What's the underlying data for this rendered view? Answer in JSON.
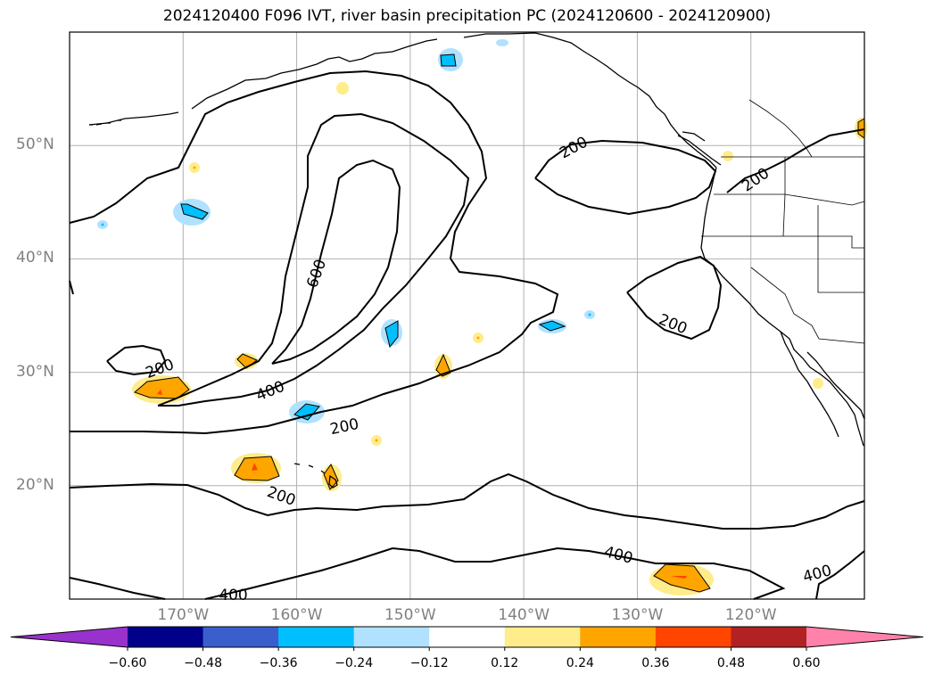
{
  "title": "2024120400 F096 IVT, river basin precipitation PC (2024120600 - 2024120900)",
  "map": {
    "projection": "plate-carree",
    "lon_range": [
      -180,
      -110
    ],
    "lat_range": [
      10,
      60
    ],
    "gridlines": true,
    "lat_labels": [
      {
        "value": 50,
        "text": "50°N"
      },
      {
        "value": 40,
        "text": "40°N"
      },
      {
        "value": 30,
        "text": "30°N"
      },
      {
        "value": 20,
        "text": "20°N"
      }
    ],
    "lon_labels": [
      {
        "value": -170,
        "text": "170°W"
      },
      {
        "value": -160,
        "text": "160°W"
      },
      {
        "value": -150,
        "text": "150°W"
      },
      {
        "value": -140,
        "text": "140°W"
      },
      {
        "value": -130,
        "text": "130°W"
      },
      {
        "value": -120,
        "text": "120°W"
      }
    ],
    "ivt_contour_labels": [
      {
        "text": "200",
        "lon": -172.1,
        "lat": 30.2
      },
      {
        "text": "400",
        "lon": -162.3,
        "lat": 28.2
      },
      {
        "text": "600",
        "lon": -158.2,
        "lat": 38.6
      },
      {
        "text": "200",
        "lon": -155.8,
        "lat": 25.1
      },
      {
        "text": "200",
        "lon": -161.4,
        "lat": 19.0
      },
      {
        "text": "400",
        "lon": -165.6,
        "lat": 10.2
      },
      {
        "text": "200",
        "lon": -135.6,
        "lat": 49.7
      },
      {
        "text": "200",
        "lon": -119.6,
        "lat": 46.9
      },
      {
        "text": "200",
        "lon": -126.9,
        "lat": 34.1
      },
      {
        "text": "400",
        "lon": -131.7,
        "lat": 13.8
      },
      {
        "text": "400",
        "lon": -114.2,
        "lat": 12.1
      }
    ]
  },
  "colorbar": {
    "colors": [
      "#9932cc",
      "#00008b",
      "#3a5fcd",
      "#00bfff",
      "#b0e2ff",
      "#ffffff",
      "#ffec8b",
      "#ffa500",
      "#ff4500",
      "#b22222",
      "#ff82ab"
    ],
    "ticks": [
      "−0.60",
      "−0.48",
      "−0.36",
      "−0.24",
      "−0.12",
      "0.12",
      "0.24",
      "0.36",
      "0.48",
      "0.60"
    ],
    "tick_values": [
      -0.6,
      -0.48,
      -0.36,
      -0.24,
      -0.12,
      0.12,
      0.24,
      0.36,
      0.48,
      0.6
    ],
    "extend": "both"
  }
}
